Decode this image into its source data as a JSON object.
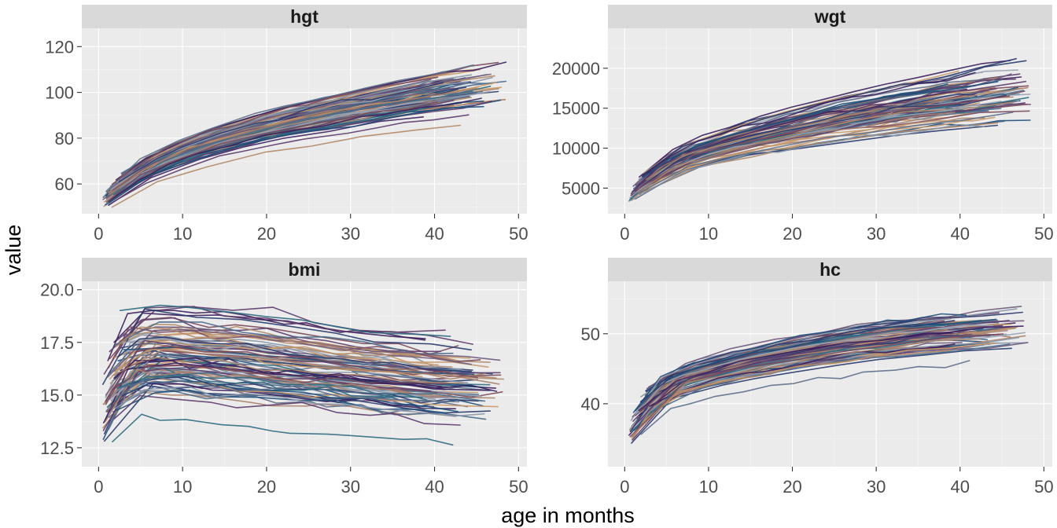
{
  "chart_data": {
    "type": "line",
    "layout": "facet-grid-2x2",
    "xlabel": "age in months",
    "ylabel": "value",
    "grid": true,
    "legend": "none",
    "palette": [
      "#3b1f5c",
      "#2a3a6b",
      "#1f4e79",
      "#5d3d6b",
      "#7a4a5c",
      "#a8826b",
      "#c89a6b",
      "#8a97a8",
      "#5f6f8a",
      "#4a6a8a",
      "#2f6b80",
      "#6e5a7a",
      "#b08a6a",
      "#9aa3b5"
    ],
    "panels": [
      {
        "title": "hgt",
        "xlim": [
          -2,
          51
        ],
        "xticks": [
          0,
          10,
          20,
          30,
          40,
          50
        ],
        "ylim": [
          47,
          128
        ],
        "yticks": [
          60,
          80,
          100,
          120
        ],
        "x": [
          0.5,
          1.5,
          3,
          5,
          7,
          10,
          13,
          16,
          20,
          25,
          30,
          35,
          40,
          45,
          48
        ],
        "band_mean": [
          51,
          56,
          60.5,
          65,
          69,
          73.5,
          77.5,
          80.5,
          84.5,
          88.5,
          92,
          95.5,
          98.5,
          101.5,
          103
        ],
        "band_spread": [
          2,
          2.2,
          2.5,
          2.7,
          2.9,
          3.1,
          3.3,
          3.5,
          3.8,
          4.1,
          4.4,
          4.7,
          5,
          5.3,
          5.5
        ],
        "n_lines": 90
      },
      {
        "title": "wgt",
        "xlim": [
          -2,
          51
        ],
        "xticks": [
          0,
          10,
          20,
          30,
          40,
          50
        ],
        "ylim": [
          1800,
          25000
        ],
        "yticks": [
          5000,
          10000,
          15000,
          20000
        ],
        "x": [
          0.5,
          1.5,
          3,
          5,
          7,
          10,
          13,
          16,
          20,
          25,
          30,
          35,
          40,
          45,
          48
        ],
        "band_mean": [
          3600,
          4800,
          6200,
          7500,
          8500,
          9500,
          10400,
          11100,
          12000,
          13100,
          14000,
          14800,
          15500,
          16200,
          16600
        ],
        "band_spread": [
          450,
          600,
          750,
          850,
          950,
          1050,
          1150,
          1250,
          1400,
          1550,
          1700,
          1850,
          2000,
          2150,
          2250
        ],
        "n_lines": 90
      },
      {
        "title": "bmi",
        "xlim": [
          -2,
          51
        ],
        "xticks": [
          0,
          10,
          20,
          30,
          40,
          50
        ],
        "ylim": [
          11.6,
          20.4
        ],
        "yticks": [
          12.5,
          15.0,
          17.5,
          20.0
        ],
        "ytick_labels": [
          "12.5",
          "15.0",
          "17.5",
          "20.0"
        ],
        "x": [
          0.5,
          1.5,
          3,
          5,
          7,
          10,
          13,
          16,
          20,
          25,
          30,
          35,
          40,
          45,
          48
        ],
        "band_mean": [
          13.8,
          15.5,
          16.8,
          17.0,
          17.0,
          16.9,
          16.8,
          16.7,
          16.5,
          16.3,
          16.1,
          15.9,
          15.7,
          15.6,
          15.5
        ],
        "band_spread": [
          0.9,
          1.0,
          1.1,
          1.1,
          1.1,
          1.1,
          1.1,
          1.1,
          1.1,
          1.05,
          1.0,
          1.0,
          1.0,
          1.0,
          1.0
        ],
        "n_lines": 90
      },
      {
        "title": "hc",
        "xlim": [
          -2,
          51
        ],
        "xticks": [
          0,
          10,
          20,
          30,
          40,
          50
        ],
        "ylim": [
          31,
          57.5
        ],
        "yticks": [
          40,
          50
        ],
        "x": [
          0.5,
          1.5,
          3,
          5,
          7,
          10,
          13,
          16,
          20,
          25,
          30,
          35,
          40,
          45,
          48
        ],
        "band_mean": [
          35.5,
          38.5,
          40.8,
          42.5,
          43.5,
          44.5,
          45.4,
          46.2,
          47.2,
          48.2,
          49.0,
          49.7,
          50.3,
          50.8,
          51.1
        ],
        "band_spread": [
          1.3,
          1.3,
          1.3,
          1.3,
          1.35,
          1.4,
          1.45,
          1.5,
          1.55,
          1.6,
          1.65,
          1.7,
          1.75,
          1.8,
          1.85
        ],
        "n_lines": 90
      }
    ]
  }
}
